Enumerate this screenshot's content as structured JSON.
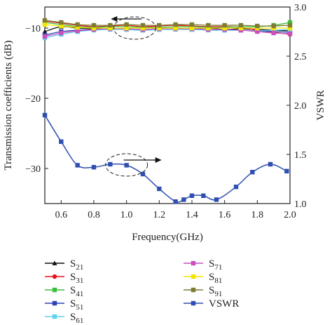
{
  "chart_data": {
    "type": "line",
    "xlabel": "Frequency(GHz)",
    "ylabel_left": "Transmission coefficients (dB)",
    "ylabel_right": "VSWR",
    "xlim": [
      0.5,
      2.0
    ],
    "ylim_left": [
      -35,
      -7
    ],
    "ylim_right": [
      1.0,
      3.0
    ],
    "x_ticks": [
      "0.6",
      "0.8",
      "1.0",
      "1.2",
      "1.4",
      "1.6",
      "1.8",
      "2.0"
    ],
    "y_ticks_left": [
      "-10",
      "-20",
      "-30"
    ],
    "y_ticks_right": [
      "1.0",
      "1.5",
      "2.0",
      "2.5",
      "3.0"
    ],
    "grid": false,
    "legend_position": "bottom",
    "x": [
      0.5,
      0.6,
      0.7,
      0.8,
      0.9,
      1.0,
      1.1,
      1.2,
      1.3,
      1.4,
      1.5,
      1.6,
      1.7,
      1.8,
      1.9,
      2.0
    ],
    "series": [
      {
        "name": "S21",
        "sub": "21",
        "axis": "left",
        "color": "#111111",
        "marker": "triangle",
        "values": [
          -10.5,
          -9.8,
          -10.0,
          -10.1,
          -10.0,
          -10.1,
          -10.2,
          -10.1,
          -10.0,
          -10.1,
          -10.0,
          -10.2,
          -10.1,
          -10.2,
          -10.3,
          -10.4
        ]
      },
      {
        "name": "S31",
        "sub": "31",
        "axis": "left",
        "color": "#e8101a",
        "marker": "circle",
        "values": [
          -9.0,
          -9.3,
          -9.6,
          -9.8,
          -9.7,
          -9.6,
          -9.8,
          -9.7,
          -9.6,
          -9.7,
          -9.8,
          -9.8,
          -9.9,
          -10.3,
          -10.6,
          -10.9
        ]
      },
      {
        "name": "S41",
        "sub": "41",
        "axis": "left",
        "color": "#3dbf3d",
        "marker": "square",
        "values": [
          -9.2,
          -9.5,
          -9.8,
          -9.9,
          -9.8,
          -9.8,
          -9.9,
          -9.9,
          -9.8,
          -9.8,
          -9.9,
          -9.9,
          -9.8,
          -9.8,
          -9.6,
          -9.2
        ]
      },
      {
        "name": "S51",
        "sub": "51",
        "axis": "left",
        "color": "#2d43b5",
        "marker": "square",
        "values": [
          -11.0,
          -10.5,
          -10.3,
          -10.2,
          -10.1,
          -10.2,
          -10.3,
          -10.2,
          -10.1,
          -10.2,
          -10.2,
          -10.3,
          -10.3,
          -10.4,
          -10.5,
          -10.6
        ]
      },
      {
        "name": "S61",
        "sub": "61",
        "axis": "left",
        "color": "#5fd1e8",
        "marker": "square",
        "values": [
          -11.4,
          -10.9,
          -10.5,
          -10.3,
          -10.2,
          -10.2,
          -10.3,
          -10.2,
          -10.2,
          -10.2,
          -10.3,
          -10.3,
          -10.3,
          -10.4,
          -10.3,
          -10.2
        ]
      },
      {
        "name": "S71",
        "sub": "71",
        "axis": "left",
        "color": "#c74fc0",
        "marker": "square",
        "values": [
          -11.2,
          -10.7,
          -10.4,
          -10.2,
          -10.1,
          -10.1,
          -10.2,
          -10.1,
          -10.1,
          -10.1,
          -10.2,
          -10.2,
          -10.3,
          -10.5,
          -10.7,
          -10.8
        ]
      },
      {
        "name": "S81",
        "sub": "81",
        "axis": "left",
        "color": "#f2e600",
        "marker": "square",
        "values": [
          -9.5,
          -9.7,
          -9.9,
          -10.0,
          -10.0,
          -10.0,
          -10.0,
          -10.0,
          -10.0,
          -10.0,
          -10.0,
          -10.0,
          -10.0,
          -10.0,
          -10.0,
          -10.0
        ]
      },
      {
        "name": "S91",
        "sub": "91",
        "axis": "left",
        "color": "#7f7b33",
        "marker": "square",
        "values": [
          -8.9,
          -9.2,
          -9.5,
          -9.6,
          -9.6,
          -9.5,
          -9.6,
          -9.6,
          -9.5,
          -9.5,
          -9.6,
          -9.6,
          -9.6,
          -9.7,
          -9.7,
          -9.6
        ]
      },
      {
        "name": "VSWR",
        "sub": "",
        "axis": "right",
        "color": "#2f4fb0",
        "marker": "square",
        "x": [
          0.5,
          0.6,
          0.7,
          0.8,
          0.9,
          1.0,
          1.1,
          1.2,
          1.3,
          1.35,
          1.4,
          1.47,
          1.55,
          1.67,
          1.77,
          1.88,
          1.98
        ],
        "values": [
          1.9,
          1.63,
          1.39,
          1.37,
          1.4,
          1.39,
          1.3,
          1.15,
          1.02,
          1.04,
          1.08,
          1.08,
          1.04,
          1.17,
          1.32,
          1.4,
          1.33
        ]
      }
    ],
    "annotations": [
      {
        "type": "ellipse-arrow",
        "points_to": "left-axis",
        "x": 1.05,
        "y_left": -10.0
      },
      {
        "type": "ellipse-arrow",
        "points_to": "right-axis",
        "x": 1.0,
        "y_left": -29.5
      }
    ]
  }
}
